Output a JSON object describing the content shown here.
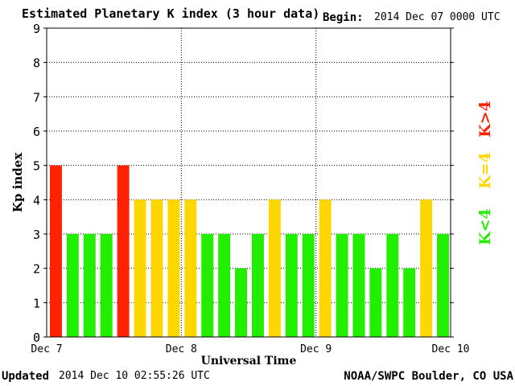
{
  "header": {
    "title": "Estimated Planetary K index (3 hour data)",
    "begin_label": "Begin:",
    "begin_value": "2014 Dec 07 0000 UTC"
  },
  "footer": {
    "updated_label": "Updated",
    "updated_value": "2014 Dec 10 02:55:26 UTC",
    "source": "NOAA/SWPC Boulder, CO USA"
  },
  "chart_data": {
    "type": "bar",
    "title": "Estimated Planetary K index (3 hour data)",
    "xlabel": "Universal Time",
    "ylabel": "Kp index",
    "ylim": [
      0,
      9
    ],
    "yticks": [
      "0",
      "1",
      "2",
      "3",
      "4",
      "5",
      "6",
      "7",
      "8",
      "9"
    ],
    "xticks": [
      "Dec 7",
      "Dec 8",
      "Dec 9",
      "Dec 10"
    ],
    "grid": true,
    "values": [
      5,
      3,
      3,
      3,
      5,
      4,
      4,
      4,
      4,
      3,
      3,
      2,
      3,
      4,
      3,
      3,
      4,
      3,
      3,
      2,
      3,
      2,
      4,
      3
    ],
    "colors": {
      "low": "#22ee00",
      "mid": "#ffd700",
      "high": "#ff2200"
    },
    "legend": [
      {
        "label": "K<4",
        "color": "#22ee00"
      },
      {
        "label": "K=4",
        "color": "#ffd700"
      },
      {
        "label": "K>4",
        "color": "#ff2200"
      }
    ],
    "legend_position": "right"
  }
}
